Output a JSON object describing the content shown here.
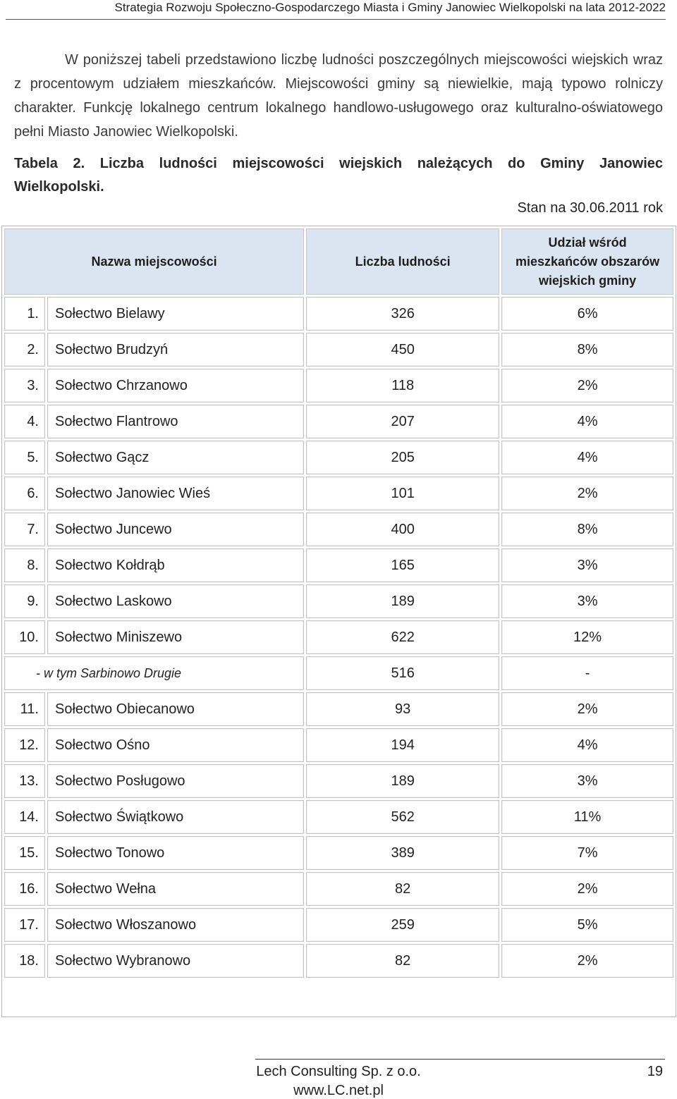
{
  "header": {
    "title": "Strategia Rozwoju Społeczno-Gospodarczego Miasta i Gminy Janowiec Wielkopolski na lata 2012-2022"
  },
  "intro": {
    "text": "W poniższej tabeli przedstawiono liczbę ludności poszczególnych miejscowości wiejskich wraz z procentowym udziałem mieszkańców. Miejscowości gminy są niewielkie, mają typowo rolniczy charakter. Funkcję lokalnego centrum lokalnego handlowo-usługowego oraz kulturalno-oświatowego pełni Miasto Janowiec Wielkopolski."
  },
  "table_caption": {
    "line1": "Tabela 2. Liczba ludności miejscowości wiejskich należących do Gminy Janowiec",
    "line2": "Wielkopolski."
  },
  "status_date": "Stan na 30.06.2011 rok",
  "table": {
    "headers": {
      "name": "Nazwa miejscowości",
      "population": "Liczba ludności",
      "share": "Udział wśród mieszkańców obszarów wiejskich gminy"
    },
    "rows": [
      {
        "no": "1.",
        "name": "Sołectwo Bielawy",
        "population": "326",
        "share": "6%"
      },
      {
        "no": "2.",
        "name": "Sołectwo Brudzyń",
        "population": "450",
        "share": "8%"
      },
      {
        "no": "3.",
        "name": "Sołectwo Chrzanowo",
        "population": "118",
        "share": "2%"
      },
      {
        "no": "4.",
        "name": "Sołectwo Flantrowo",
        "population": "207",
        "share": "4%"
      },
      {
        "no": "5.",
        "name": "Sołectwo Gącz",
        "population": "205",
        "share": "4%"
      },
      {
        "no": "6.",
        "name": "Sołectwo Janowiec Wieś",
        "population": "101",
        "share": "2%"
      },
      {
        "no": "7.",
        "name": "Sołectwo Juncewo",
        "population": "400",
        "share": "8%"
      },
      {
        "no": "8.",
        "name": "Sołectwo Kołdrąb",
        "population": "165",
        "share": "3%"
      },
      {
        "no": "9.",
        "name": "Sołectwo Laskowo",
        "population": "189",
        "share": "3%"
      },
      {
        "no": "10.",
        "name": "Sołectwo Miniszewo",
        "population": "622",
        "share": "12%"
      },
      {
        "no": "",
        "name": "- w tym Sarbinowo Drugie",
        "population": "516",
        "share": "-",
        "sub": true
      },
      {
        "no": "11.",
        "name": "Sołectwo Obiecanowo",
        "population": "93",
        "share": "2%"
      },
      {
        "no": "12.",
        "name": "Sołectwo Ośno",
        "population": "194",
        "share": "4%"
      },
      {
        "no": "13.",
        "name": "Sołectwo Posługowo",
        "population": "189",
        "share": "3%"
      },
      {
        "no": "14.",
        "name": "Sołectwo Świątkowo",
        "population": "562",
        "share": "11%"
      },
      {
        "no": "15.",
        "name": "Sołectwo Tonowo",
        "population": "389",
        "share": "7%"
      },
      {
        "no": "16.",
        "name": "Sołectwo Wełna",
        "population": "82",
        "share": "2%"
      },
      {
        "no": "17.",
        "name": "Sołectwo Włoszanowo",
        "population": "259",
        "share": "5%"
      },
      {
        "no": "18.",
        "name": "Sołectwo Wybranowo",
        "population": "82",
        "share": "2%"
      }
    ]
  },
  "footer": {
    "company": "Lech Consulting Sp. z o.o.",
    "url": "www.LC.net.pl",
    "page": "19"
  }
}
